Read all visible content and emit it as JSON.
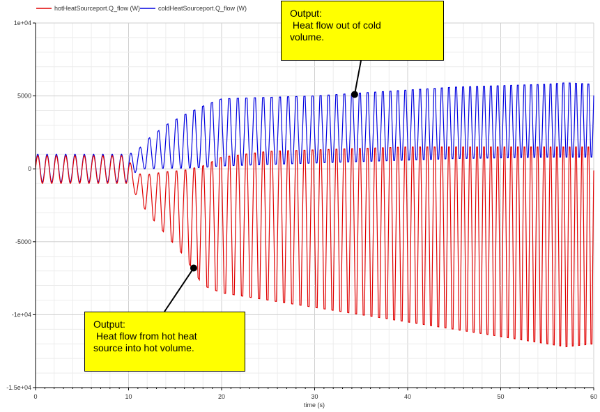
{
  "chart_data": {
    "type": "line",
    "xlabel": "time (s)",
    "ylabel": "",
    "xlim": [
      0,
      60
    ],
    "ylim": [
      -15000,
      10000
    ],
    "x_ticks": [
      0,
      10,
      20,
      30,
      40,
      50,
      60
    ],
    "x_tick_labels": [
      "0",
      "10",
      "20",
      "30",
      "40",
      "50",
      "60"
    ],
    "y_ticks": [
      10000,
      5000,
      0,
      -5000,
      -10000,
      -15000
    ],
    "y_tick_labels": [
      "1e+04",
      "5000",
      "0",
      "-5000",
      "-1e+04",
      "-1.5e+04"
    ],
    "grid": true,
    "legend_position": "top-left",
    "series": [
      {
        "name": "hotHeatSourceport.Q_flow (W)",
        "color": "#e00000",
        "period_s": [
          1.0,
          1.0,
          1.0,
          0.95,
          0.9,
          0.85,
          0.8,
          0.75,
          0.7,
          0.7,
          0.68,
          0.66
        ],
        "envelope": {
          "t": [
            0,
            10,
            10.5,
            12,
            14,
            16,
            18,
            20,
            25,
            30,
            35,
            40,
            45,
            50,
            55,
            57,
            60
          ],
          "max": [
            900,
            900,
            -300,
            -400,
            -200,
            -100,
            200,
            800,
            1200,
            1300,
            1400,
            1500,
            1500,
            1500,
            1500,
            1500,
            1500
          ],
          "min": [
            -1000,
            -1000,
            -1500,
            -3000,
            -4500,
            -6000,
            -8000,
            -8500,
            -9000,
            -9500,
            -10000,
            -10500,
            -11000,
            -11500,
            -12000,
            -12200,
            -12000
          ]
        }
      },
      {
        "name": "coldHeatSourceport.Q_flow (W)",
        "color": "#0000e0",
        "envelope": {
          "t": [
            0,
            10,
            11,
            12,
            14,
            16,
            18,
            20,
            25,
            30,
            35,
            40,
            45,
            50,
            55,
            57,
            60
          ],
          "max": [
            1000,
            1000,
            1300,
            2000,
            3000,
            3700,
            4300,
            4800,
            4900,
            5000,
            5200,
            5400,
            5600,
            5700,
            5800,
            5900,
            5800
          ],
          "min": [
            -900,
            -900,
            0,
            0,
            50,
            50,
            100,
            200,
            300,
            400,
            500,
            600,
            700,
            750,
            800,
            800,
            800
          ]
        }
      }
    ],
    "annotations": [
      {
        "text": "Output:\n Heat flow out of cold\nvolume.",
        "point": {
          "x": 34.3,
          "y": 5100
        }
      },
      {
        "text": "Output:\n Heat flow from hot heat\nsource into hot volume.",
        "point": {
          "x": 17.0,
          "y": -6800
        }
      }
    ]
  }
}
